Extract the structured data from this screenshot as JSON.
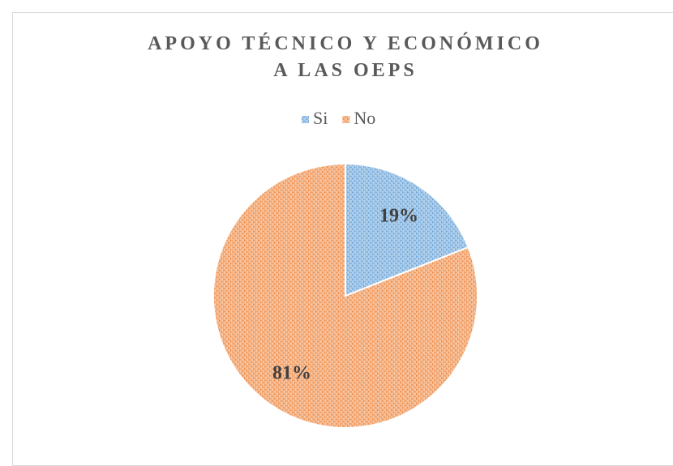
{
  "chart_data": {
    "type": "pie",
    "title": "APOYO TÉCNICO Y ECONÓMICO A LAS OEPS",
    "categories": [
      "Si",
      "No"
    ],
    "values": [
      19,
      81
    ],
    "value_labels": [
      "19%",
      "81%"
    ],
    "colors": [
      "#5b9bd5",
      "#ed7d31"
    ],
    "legend": "top"
  }
}
